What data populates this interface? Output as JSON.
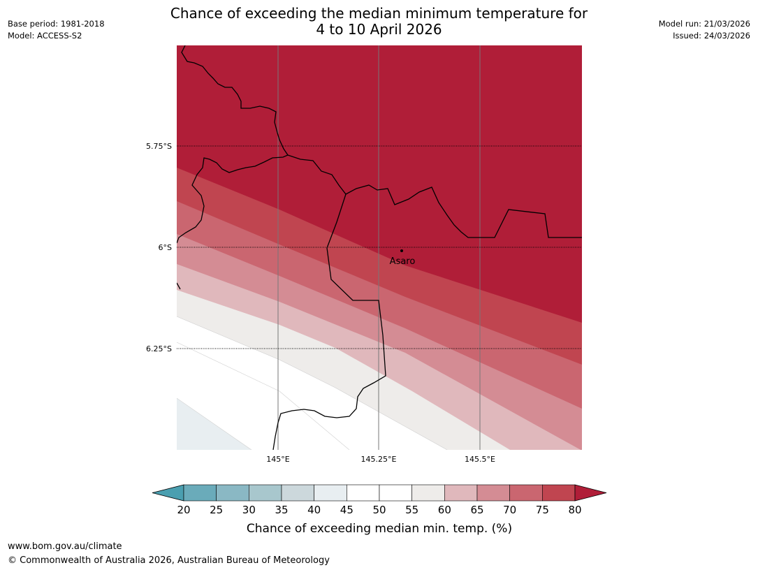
{
  "header": {
    "base_period": "Base period: 1981-2018",
    "model": "Model: ACCESS-S2",
    "model_run": "Model run: 21/03/2026",
    "issued": "Issued: 24/03/2026",
    "title_line1": "Chance of exceeding the median minimum temperature for",
    "title_line2": "4 to 10 April 2026"
  },
  "map": {
    "lat_labels": [
      "5.75°S",
      "6°S",
      "6.25°S"
    ],
    "lon_labels": [
      "145°E",
      "145.25°E",
      "145.5°E"
    ],
    "place": {
      "name": "Asaro"
    }
  },
  "colorbar": {
    "ticks": [
      "20",
      "25",
      "30",
      "35",
      "40",
      "45",
      "50",
      "55",
      "60",
      "65",
      "70",
      "75",
      "80"
    ],
    "colors": [
      "#4a9fb0",
      "#6aabba",
      "#8ab8c4",
      "#a8c7cd",
      "#ccd8dc",
      "#e8eef1",
      "#ffffff",
      "#ffffff",
      "#eeecea",
      "#e0b8bc",
      "#d48c94",
      "#ca6670",
      "#c04550",
      "#b01e38"
    ],
    "label": "Chance of exceeding median min. temp. (%)"
  },
  "footer": {
    "url": "www.bom.gov.au/climate",
    "copyright": "© Commonwealth of Australia 2026, Australian Bureau of Meteorology"
  }
}
